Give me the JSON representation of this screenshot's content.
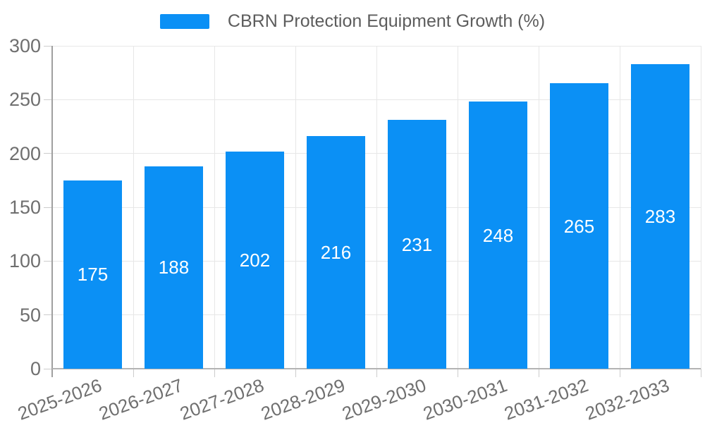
{
  "legend": {
    "label": "CBRN Protection Equipment Growth (%)"
  },
  "chart_data": {
    "type": "bar",
    "title": "CBRN Protection Equipment Growth (%)",
    "categories": [
      "2025-2026",
      "2026-2027",
      "2027-2028",
      "2028-2029",
      "2029-2030",
      "2030-2031",
      "2031-2032",
      "2032-2033"
    ],
    "values": [
      175,
      188,
      202,
      216,
      231,
      248,
      265,
      283
    ],
    "xlabel": "",
    "ylabel": "",
    "ylim": [
      0,
      300
    ],
    "yticks": [
      0,
      50,
      100,
      150,
      200,
      250,
      300
    ],
    "grid": true,
    "legend_position": "top-center",
    "x_label_rotation_deg": 20,
    "colors": {
      "bar": "#0b90f5",
      "bar_value_text": "#ffffff",
      "gridline": "#e7e7e7",
      "y_axis_line": "#a0a0a0",
      "x_axis_line": "#b3b3b3",
      "tick_mark": "#cccccc",
      "tick_text": "#6f6f6f",
      "legend_text": "#5d5d5d"
    }
  }
}
